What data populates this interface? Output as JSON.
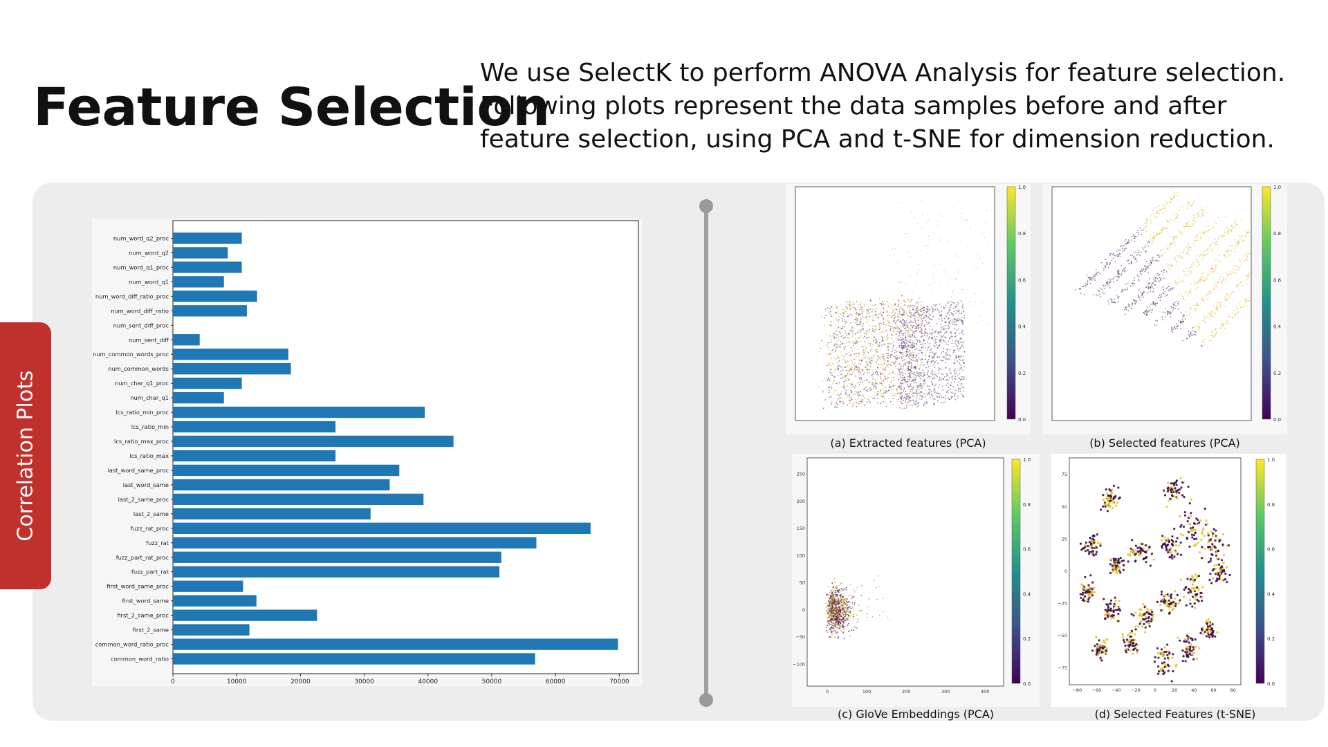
{
  "header": {
    "title": "Feature Selection",
    "description": "We use SelectK to perform ANOVA Analysis for feature selection. Following plots represent the data samples before and after feature selection, using PCA and t-SNE for dimension reduction."
  },
  "side_tab": {
    "label": "Correlation Plots"
  },
  "colors": {
    "accent": "#c0302c",
    "bar": "#1f77b4",
    "panel": "#ededed"
  },
  "captions": {
    "a": "(a) Extracted features (PCA)",
    "b": "(b) Selected features (PCA)",
    "c": "(c) GloVe Embeddings (PCA)",
    "d": "(d) Selected Features (t-SNE)"
  },
  "chart_data": [
    {
      "type": "bar",
      "orientation": "horizontal",
      "categories": [
        "num_word_q2_proc",
        "num_word_q2",
        "num_word_q1_proc",
        "num_word_q1",
        "num_word_diff_ratio_proc",
        "num_word_diff_ratio",
        "num_sent_diff_proc",
        "num_sent_diff",
        "num_common_words_proc",
        "num_common_words",
        "num_char_q1_proc",
        "num_char_q1",
        "lcs_ratio_min_proc",
        "lcs_ratio_min",
        "lcs_ratio_max_proc",
        "lcs_ratio_max",
        "last_word_same_proc",
        "last_word_same",
        "last_2_same_proc",
        "last_2_same",
        "fuzz_rat_proc",
        "fuzz_rat",
        "fuzz_part_rat_proc",
        "fuzz_part_rat",
        "first_word_same_proc",
        "first_word_same",
        "first_2_same_proc",
        "first_2_same",
        "common_word_ratio_proc",
        "common_word_ratio"
      ],
      "values": [
        10800,
        8600,
        10800,
        8000,
        13200,
        11600,
        0,
        4200,
        18100,
        18500,
        10800,
        8000,
        39500,
        25500,
        44000,
        25500,
        35500,
        34000,
        39300,
        31000,
        65500,
        57000,
        51500,
        51200,
        11000,
        13100,
        22600,
        12000,
        69800,
        56800
      ],
      "xticks": [
        "0",
        "10000",
        "20000",
        "30000",
        "40000",
        "50000",
        "60000",
        "70000"
      ],
      "xlim": [
        0,
        73000
      ],
      "grid": false
    },
    {
      "type": "scatter",
      "panel": "a",
      "colorbar_ticks": [
        "1.0",
        "0.8",
        "0.6",
        "0.4",
        "0.2",
        "0.0"
      ]
    },
    {
      "type": "scatter",
      "panel": "b",
      "colorbar_ticks": [
        "1.0",
        "0.8",
        "0.6",
        "0.4",
        "0.2",
        "0.0"
      ]
    },
    {
      "type": "scatter",
      "panel": "c",
      "xticks": [
        "0",
        "100",
        "200",
        "300",
        "400"
      ],
      "yticks": [
        "250",
        "200",
        "150",
        "100",
        "50",
        "0",
        "−50",
        "−100"
      ],
      "colorbar_ticks": [
        "1.0",
        "0.8",
        "0.6",
        "0.4",
        "0.2",
        "0.0"
      ]
    },
    {
      "type": "scatter",
      "panel": "d",
      "xticks": [
        "−80",
        "−60",
        "−40",
        "−20",
        "0",
        "20",
        "40",
        "60",
        "80"
      ],
      "yticks": [
        "75",
        "50",
        "25",
        "0",
        "−25",
        "−50",
        "−75"
      ],
      "colorbar_ticks": [
        "1.0",
        "0.8",
        "0.6",
        "0.4",
        "0.2",
        "0.0"
      ]
    }
  ]
}
